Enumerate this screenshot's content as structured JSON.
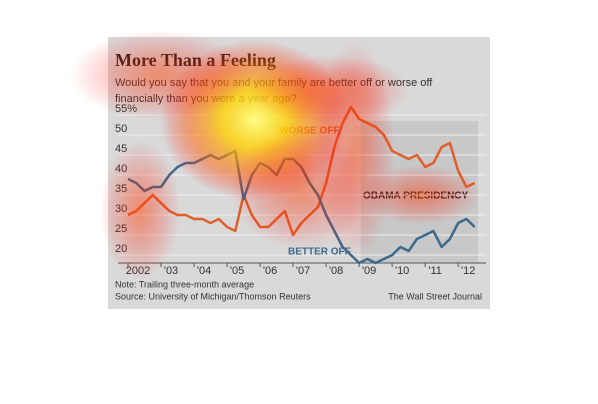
{
  "chart_data": {
    "type": "line",
    "title": "More Than a Feeling",
    "subtitle": [
      "Would you say that you and your family are better off or worse off",
      "financially than you were a year ago?"
    ],
    "annotation": "OBAMA PRESIDENCY",
    "note": "Note: Trailing three-month average",
    "source": "Source: University of Michigan/Thomson Reuters",
    "credit": "The Wall Street Journal",
    "x": [
      2002,
      2002.25,
      2002.5,
      2002.75,
      2003,
      2003.25,
      2003.5,
      2003.75,
      2004,
      2004.25,
      2004.5,
      2004.75,
      2005,
      2005.25,
      2005.5,
      2005.75,
      2006,
      2006.25,
      2006.5,
      2006.75,
      2007,
      2007.25,
      2007.5,
      2007.75,
      2008,
      2008.25,
      2008.5,
      2008.75,
      2009,
      2009.25,
      2009.5,
      2009.75,
      2010,
      2010.25,
      2010.5,
      2010.75,
      2011,
      2011.25,
      2011.5,
      2011.75,
      2012,
      2012.25,
      2012.5
    ],
    "series": [
      {
        "name": "WORSE OFF",
        "color": "#e0602a",
        "values": [
          30,
          31,
          33,
          35,
          33,
          31,
          30,
          30,
          29,
          29,
          28,
          29,
          27,
          26,
          35,
          30,
          27,
          27,
          29,
          31,
          25,
          28,
          30,
          32,
          38,
          47,
          53,
          57,
          54,
          53,
          52,
          50,
          46,
          45,
          44,
          45,
          42,
          43,
          47,
          48,
          41,
          37,
          38
        ]
      },
      {
        "name": "BETTER OFF",
        "color": "#3d6a8c",
        "values": [
          39,
          38,
          36,
          37,
          37,
          40,
          42,
          43,
          43,
          44,
          45,
          44,
          45,
          46,
          34,
          40,
          43,
          42,
          40,
          44,
          44,
          42,
          38,
          35,
          30,
          26,
          22,
          20,
          18,
          19,
          18,
          19,
          20,
          22,
          21,
          24,
          25,
          26,
          22,
          24,
          28,
          29,
          27
        ]
      }
    ],
    "xlim": [
      2002,
      2012.6
    ],
    "xticks": [
      {
        "value": 2002,
        "label": "2002"
      },
      {
        "value": 2003,
        "label": "'03"
      },
      {
        "value": 2004,
        "label": "'04"
      },
      {
        "value": 2005,
        "label": "'05"
      },
      {
        "value": 2006,
        "label": "'06"
      },
      {
        "value": 2007,
        "label": "'07"
      },
      {
        "value": 2008,
        "label": "'08"
      },
      {
        "value": 2009,
        "label": "'09"
      },
      {
        "value": 2010,
        "label": "'10"
      },
      {
        "value": 2011,
        "label": "'11"
      },
      {
        "value": 2012,
        "label": "'12"
      }
    ],
    "ylim": [
      18,
      58
    ],
    "yticks": [
      20,
      25,
      30,
      35,
      40,
      45,
      50,
      {
        "value": 55,
        "label": "55%"
      }
    ],
    "shade_x": [
      2009.05,
      2012.6
    ],
    "grid": true
  }
}
